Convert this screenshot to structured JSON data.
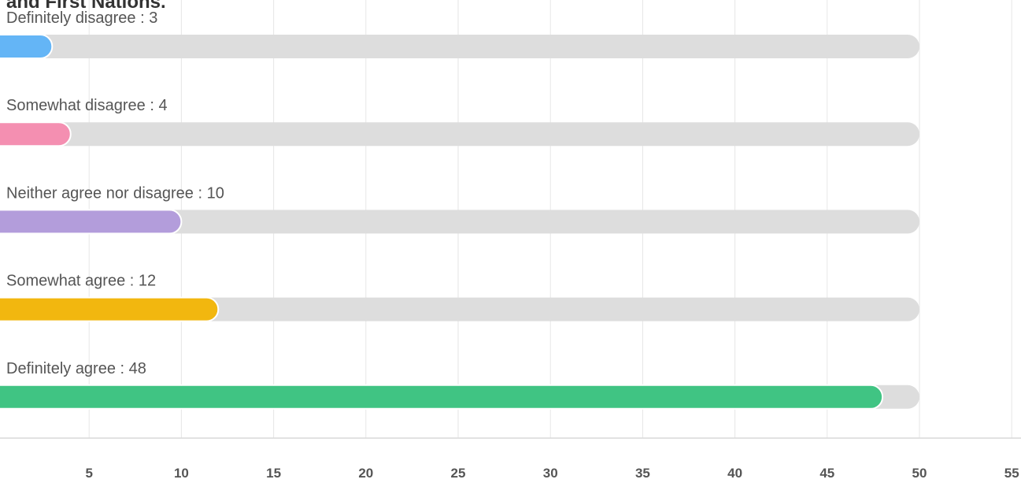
{
  "chart_data": {
    "type": "bar",
    "orientation": "horizontal",
    "title": "and First Nations.",
    "categories": [
      "Definitely disagree",
      "Somewhat disagree",
      "Neither agree nor disagree",
      "Somewhat agree",
      "Definitely agree"
    ],
    "values": [
      3,
      4,
      10,
      12,
      48
    ],
    "bar_labels": [
      "Definitely disagree : 3",
      "Somewhat disagree : 4",
      "Neither agree nor disagree : 10",
      "Somewhat agree : 12",
      "Definitely agree : 48"
    ],
    "colors": [
      "#64b5f6",
      "#f48fb1",
      "#b39ddb",
      "#f2b70f",
      "#40c483"
    ],
    "track_color": "#dddddd",
    "track_max": 50,
    "xlim": [
      0,
      55
    ],
    "xticks": [
      5,
      10,
      15,
      20,
      25,
      30,
      35,
      40,
      45,
      50,
      55
    ],
    "grid": true,
    "legend": "none"
  }
}
